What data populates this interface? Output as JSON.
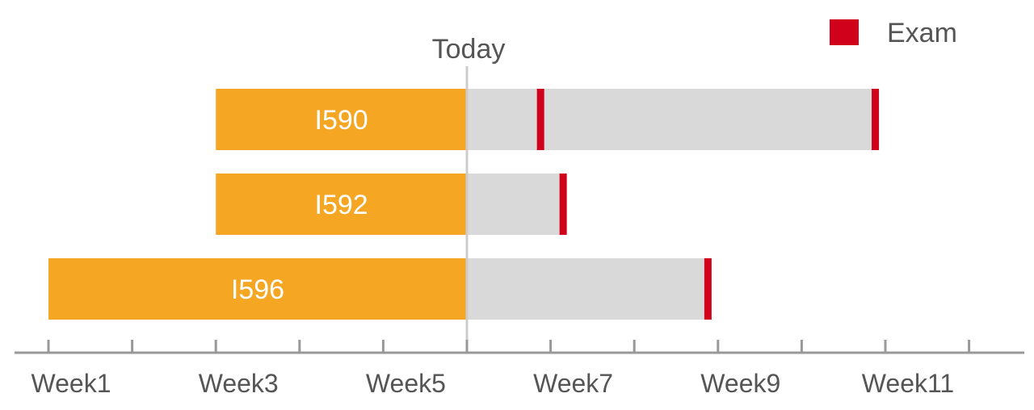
{
  "chart_data": {
    "type": "gantt",
    "today_label": "Today",
    "today_week": 6,
    "x_tick_labels": [
      "Week1",
      "Week3",
      "Week5",
      "Week7",
      "Week9",
      "Week11"
    ],
    "x_tick_label_values": [
      1,
      3,
      5,
      7,
      9,
      11
    ],
    "x_ticks": [
      1,
      2,
      3,
      4,
      5,
      6,
      7,
      8,
      9,
      10,
      11,
      12
    ],
    "xlim": [
      0.6,
      12.6
    ],
    "legend": {
      "label": "Exam",
      "color": "#d0021b",
      "placement": "top-right"
    },
    "colors": {
      "elapsed": "#f5a623",
      "remaining": "#d9d9d9",
      "exam": "#d0021b",
      "today_line": "#cccccc",
      "axis": "#999999"
    },
    "series": [
      {
        "name": "I590",
        "start_week": 3,
        "end_week": 10.88,
        "exams": [
          6.88,
          10.88
        ]
      },
      {
        "name": "I592",
        "start_week": 3,
        "end_week": 7.15,
        "exams": [
          7.15
        ]
      },
      {
        "name": "I596",
        "start_week": 1,
        "end_week": 8.88,
        "exams": [
          8.88
        ]
      }
    ]
  }
}
